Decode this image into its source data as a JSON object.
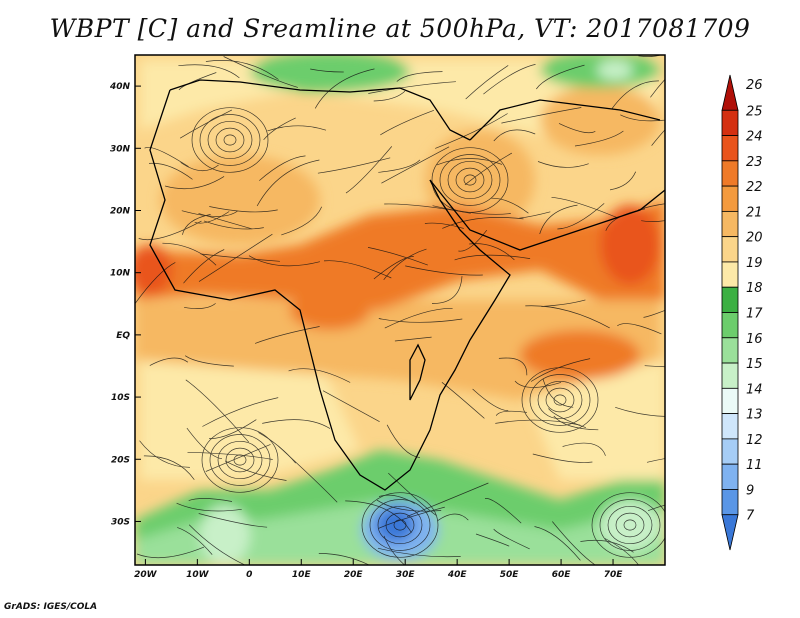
{
  "title": "WBPT [C] and Sreamline at 500hPa, VT: 2017081709",
  "credit": "GrADS: IGES/COLA",
  "map": {
    "lon_range": [
      -22,
      80
    ],
    "lat_range": [
      -37,
      45
    ],
    "lon_ticks": [
      {
        "v": -20,
        "label": "20W"
      },
      {
        "v": -10,
        "label": "10W"
      },
      {
        "v": 0,
        "label": "0"
      },
      {
        "v": 10,
        "label": "10E"
      },
      {
        "v": 20,
        "label": "20E"
      },
      {
        "v": 30,
        "label": "30E"
      },
      {
        "v": 40,
        "label": "40E"
      },
      {
        "v": 50,
        "label": "50E"
      },
      {
        "v": 60,
        "label": "60E"
      },
      {
        "v": 70,
        "label": "70E"
      }
    ],
    "lat_ticks": [
      {
        "v": 40,
        "label": "40N"
      },
      {
        "v": 30,
        "label": "30N"
      },
      {
        "v": 20,
        "label": "20N"
      },
      {
        "v": 10,
        "label": "10N"
      },
      {
        "v": 0,
        "label": "EQ"
      },
      {
        "v": -10,
        "label": "10S"
      },
      {
        "v": -20,
        "label": "20S"
      },
      {
        "v": -30,
        "label": "30S"
      }
    ]
  },
  "colorbar": {
    "labels": [
      "7",
      "9",
      "11",
      "12",
      "13",
      "14",
      "15",
      "16",
      "17",
      "18",
      "19",
      "20",
      "21",
      "22",
      "23",
      "24",
      "25",
      "26"
    ],
    "colors": [
      "#3a78d8",
      "#5a96e6",
      "#7fb2f0",
      "#a6cdf6",
      "#cfe6fb",
      "#ebfaf7",
      "#c8f0c8",
      "#9ae09a",
      "#6ccd6c",
      "#3cb043",
      "#fde9a8",
      "#fbd58a",
      "#f6b862",
      "#f39a3e",
      "#ef7a28",
      "#e9541c",
      "#d43011",
      "#b01008"
    ]
  },
  "colors": {
    "warm_band": "#ef7a28",
    "background_field": "#fbd58a",
    "southern_green": "#6ccd6c",
    "cold_core": "#3a78d8"
  }
}
